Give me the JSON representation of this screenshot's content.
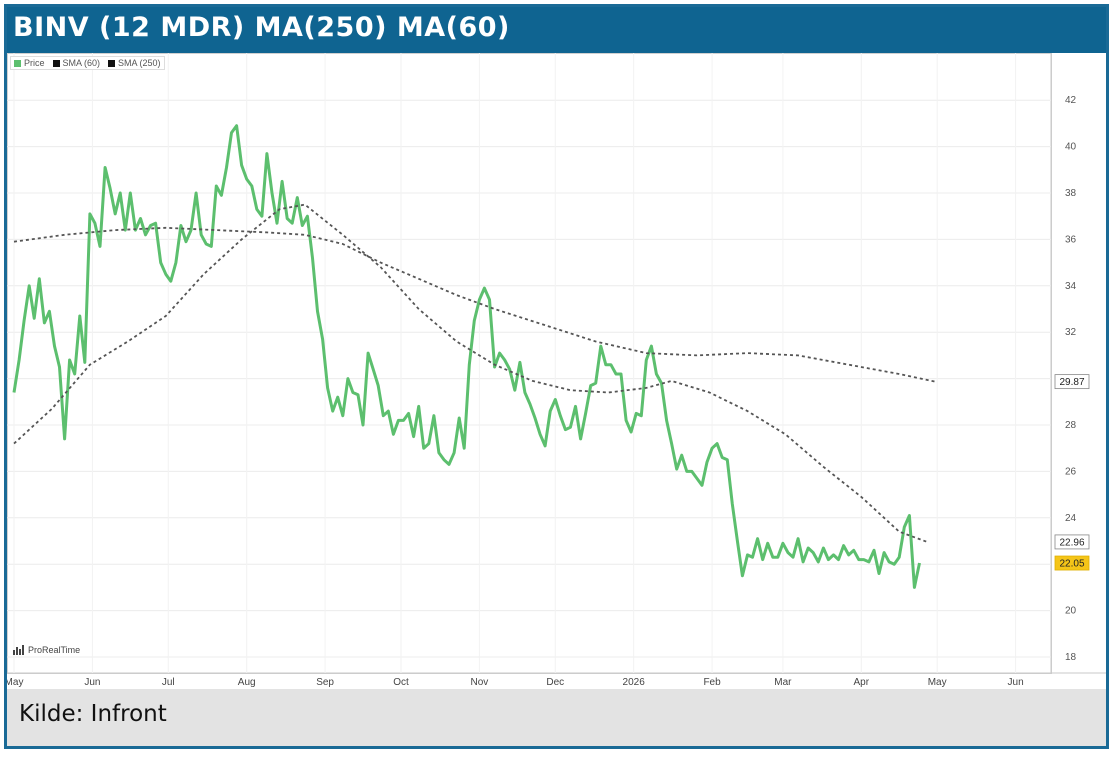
{
  "title": "BINV (12 MDR) MA(250) MA(60)",
  "footer": {
    "source": "Kilde: Infront"
  },
  "brand": "ProRealTime",
  "legend": [
    {
      "label": "Price",
      "color": "#5cbf6e"
    },
    {
      "label": "SMA (60)",
      "color": "#111111"
    },
    {
      "label": "SMA (250)",
      "color": "#111111"
    }
  ],
  "colors": {
    "title_bg": "#0f6491",
    "price": "#5cbf6e",
    "sma": "#555555",
    "last_price_badge": "#f5c518",
    "sma_badge": "#ffffff"
  },
  "chart_data": {
    "type": "line",
    "ylim": [
      18,
      43
    ],
    "y_ticks": [
      18,
      20,
      22,
      24,
      26,
      28,
      30,
      32,
      34,
      36,
      38,
      40,
      42
    ],
    "x_ticks": [
      {
        "label": "May",
        "x": 0
      },
      {
        "label": "Jun",
        "x": 31
      },
      {
        "label": "Jul",
        "x": 61
      },
      {
        "label": "Aug",
        "x": 92
      },
      {
        "label": "Sep",
        "x": 123
      },
      {
        "label": "Oct",
        "x": 153
      },
      {
        "label": "Nov",
        "x": 184
      },
      {
        "label": "Dec",
        "x": 214
      },
      {
        "label": "2026",
        "x": 245
      },
      {
        "label": "Feb",
        "x": 276
      },
      {
        "label": "Mar",
        "x": 304
      },
      {
        "label": "Apr",
        "x": 335
      },
      {
        "label": "May",
        "x": 365
      },
      {
        "label": "Jun",
        "x": 396
      }
    ],
    "badges": [
      {
        "label": "29.87",
        "y": 29.87,
        "style": "sma"
      },
      {
        "label": "22.96",
        "y": 22.96,
        "style": "sma"
      },
      {
        "label": "22.05",
        "y": 22.05,
        "style": "price"
      }
    ],
    "series": [
      {
        "name": "Price",
        "style": "price",
        "points": [
          [
            0,
            29.4
          ],
          [
            2,
            30.8
          ],
          [
            4,
            32.5
          ],
          [
            6,
            34.0
          ],
          [
            8,
            32.6
          ],
          [
            10,
            34.3
          ],
          [
            12,
            32.4
          ],
          [
            14,
            32.9
          ],
          [
            16,
            31.4
          ],
          [
            18,
            30.5
          ],
          [
            20,
            27.4
          ],
          [
            22,
            30.8
          ],
          [
            24,
            30.2
          ],
          [
            26,
            32.7
          ],
          [
            28,
            30.7
          ],
          [
            30,
            37.1
          ],
          [
            32,
            36.7
          ],
          [
            34,
            35.7
          ],
          [
            36,
            39.1
          ],
          [
            38,
            38.2
          ],
          [
            40,
            37.1
          ],
          [
            42,
            38.0
          ],
          [
            44,
            36.4
          ],
          [
            46,
            38.0
          ],
          [
            48,
            36.4
          ],
          [
            50,
            36.9
          ],
          [
            52,
            36.2
          ],
          [
            54,
            36.6
          ],
          [
            56,
            36.7
          ],
          [
            58,
            35.0
          ],
          [
            60,
            34.5
          ],
          [
            62,
            34.2
          ],
          [
            64,
            35.0
          ],
          [
            66,
            36.6
          ],
          [
            68,
            35.9
          ],
          [
            70,
            36.4
          ],
          [
            72,
            38.0
          ],
          [
            74,
            36.2
          ],
          [
            76,
            35.8
          ],
          [
            78,
            35.7
          ],
          [
            80,
            38.3
          ],
          [
            82,
            37.9
          ],
          [
            84,
            39.1
          ],
          [
            86,
            40.6
          ],
          [
            88,
            40.9
          ],
          [
            90,
            39.2
          ],
          [
            92,
            38.6
          ],
          [
            94,
            38.3
          ],
          [
            96,
            37.3
          ],
          [
            98,
            37.0
          ],
          [
            100,
            39.7
          ],
          [
            102,
            38.0
          ],
          [
            104,
            36.7
          ],
          [
            106,
            38.5
          ],
          [
            108,
            36.9
          ],
          [
            110,
            36.7
          ],
          [
            112,
            37.8
          ],
          [
            114,
            36.6
          ],
          [
            116,
            37.0
          ],
          [
            118,
            35.2
          ],
          [
            120,
            32.9
          ],
          [
            122,
            31.7
          ],
          [
            124,
            29.6
          ],
          [
            126,
            28.6
          ],
          [
            128,
            29.2
          ],
          [
            130,
            28.4
          ],
          [
            132,
            30.0
          ],
          [
            134,
            29.4
          ],
          [
            136,
            29.3
          ],
          [
            138,
            28.0
          ],
          [
            140,
            31.1
          ],
          [
            142,
            30.4
          ],
          [
            144,
            29.7
          ],
          [
            146,
            28.4
          ],
          [
            148,
            28.6
          ],
          [
            150,
            27.6
          ],
          [
            152,
            28.2
          ],
          [
            154,
            28.2
          ],
          [
            156,
            28.5
          ],
          [
            158,
            27.5
          ],
          [
            160,
            28.8
          ],
          [
            162,
            27.0
          ],
          [
            164,
            27.2
          ],
          [
            166,
            28.4
          ],
          [
            168,
            26.8
          ],
          [
            170,
            26.5
          ],
          [
            172,
            26.3
          ],
          [
            174,
            26.8
          ],
          [
            176,
            28.3
          ],
          [
            178,
            27.0
          ],
          [
            180,
            30.6
          ],
          [
            182,
            32.5
          ],
          [
            184,
            33.4
          ],
          [
            186,
            33.9
          ],
          [
            188,
            33.4
          ],
          [
            190,
            30.5
          ],
          [
            192,
            31.1
          ],
          [
            194,
            30.8
          ],
          [
            196,
            30.4
          ],
          [
            198,
            29.5
          ],
          [
            200,
            30.7
          ],
          [
            202,
            29.4
          ],
          [
            204,
            28.9
          ],
          [
            206,
            28.3
          ],
          [
            208,
            27.6
          ],
          [
            210,
            27.1
          ],
          [
            212,
            28.6
          ],
          [
            214,
            29.1
          ],
          [
            216,
            28.4
          ],
          [
            218,
            27.8
          ],
          [
            220,
            27.9
          ],
          [
            222,
            28.8
          ],
          [
            224,
            27.4
          ],
          [
            226,
            28.5
          ],
          [
            228,
            29.7
          ],
          [
            230,
            29.8
          ],
          [
            232,
            31.4
          ],
          [
            234,
            30.6
          ],
          [
            236,
            30.6
          ],
          [
            238,
            30.2
          ],
          [
            240,
            30.2
          ],
          [
            242,
            28.2
          ],
          [
            244,
            27.7
          ],
          [
            246,
            28.5
          ],
          [
            248,
            28.4
          ],
          [
            250,
            30.8
          ],
          [
            252,
            31.4
          ],
          [
            254,
            30.2
          ],
          [
            256,
            29.8
          ],
          [
            258,
            28.2
          ],
          [
            260,
            27.2
          ],
          [
            262,
            26.1
          ],
          [
            264,
            26.7
          ],
          [
            266,
            26.0
          ],
          [
            268,
            26.0
          ],
          [
            270,
            25.7
          ],
          [
            272,
            25.4
          ],
          [
            274,
            26.4
          ],
          [
            276,
            27.0
          ],
          [
            278,
            27.2
          ],
          [
            280,
            26.6
          ],
          [
            282,
            26.5
          ],
          [
            284,
            24.6
          ],
          [
            286,
            23.0
          ],
          [
            288,
            21.5
          ],
          [
            290,
            22.4
          ],
          [
            292,
            22.3
          ],
          [
            294,
            23.1
          ],
          [
            296,
            22.2
          ],
          [
            298,
            22.9
          ],
          [
            300,
            22.3
          ],
          [
            302,
            22.3
          ],
          [
            304,
            22.9
          ],
          [
            306,
            22.5
          ],
          [
            308,
            22.3
          ],
          [
            310,
            23.1
          ],
          [
            312,
            22.1
          ],
          [
            314,
            22.7
          ],
          [
            316,
            22.5
          ],
          [
            318,
            22.1
          ],
          [
            320,
            22.7
          ],
          [
            322,
            22.2
          ],
          [
            324,
            22.4
          ],
          [
            326,
            22.2
          ],
          [
            328,
            22.8
          ],
          [
            330,
            22.4
          ],
          [
            332,
            22.6
          ],
          [
            334,
            22.2
          ],
          [
            336,
            22.2
          ],
          [
            338,
            22.1
          ],
          [
            340,
            22.6
          ],
          [
            342,
            21.6
          ],
          [
            344,
            22.5
          ],
          [
            346,
            22.1
          ],
          [
            348,
            22.0
          ],
          [
            350,
            22.3
          ],
          [
            352,
            23.6
          ],
          [
            354,
            24.1
          ],
          [
            356,
            21.0
          ],
          [
            358,
            22.05
          ]
        ]
      },
      {
        "name": "SMA (250)",
        "style": "sma",
        "points": [
          [
            0,
            35.9
          ],
          [
            20,
            36.2
          ],
          [
            40,
            36.4
          ],
          [
            60,
            36.5
          ],
          [
            80,
            36.4
          ],
          [
            100,
            36.3
          ],
          [
            115,
            36.2
          ],
          [
            130,
            35.8
          ],
          [
            145,
            35.0
          ],
          [
            160,
            34.3
          ],
          [
            175,
            33.6
          ],
          [
            190,
            33.0
          ],
          [
            210,
            32.3
          ],
          [
            230,
            31.6
          ],
          [
            250,
            31.1
          ],
          [
            270,
            31.0
          ],
          [
            290,
            31.1
          ],
          [
            310,
            31.0
          ],
          [
            330,
            30.6
          ],
          [
            350,
            30.2
          ],
          [
            364,
            29.87
          ]
        ]
      },
      {
        "name": "SMA (60)",
        "style": "sma",
        "points": [
          [
            0,
            27.2
          ],
          [
            15,
            28.7
          ],
          [
            30,
            30.6
          ],
          [
            45,
            31.6
          ],
          [
            60,
            32.7
          ],
          [
            75,
            34.5
          ],
          [
            90,
            36.0
          ],
          [
            105,
            37.3
          ],
          [
            115,
            37.5
          ],
          [
            130,
            36.2
          ],
          [
            145,
            34.8
          ],
          [
            160,
            33.0
          ],
          [
            175,
            31.6
          ],
          [
            190,
            30.6
          ],
          [
            205,
            29.9
          ],
          [
            220,
            29.5
          ],
          [
            235,
            29.4
          ],
          [
            250,
            29.6
          ],
          [
            260,
            29.9
          ],
          [
            275,
            29.4
          ],
          [
            290,
            28.6
          ],
          [
            305,
            27.6
          ],
          [
            320,
            26.2
          ],
          [
            335,
            24.9
          ],
          [
            350,
            23.4
          ],
          [
            361,
            22.96
          ]
        ]
      }
    ]
  }
}
